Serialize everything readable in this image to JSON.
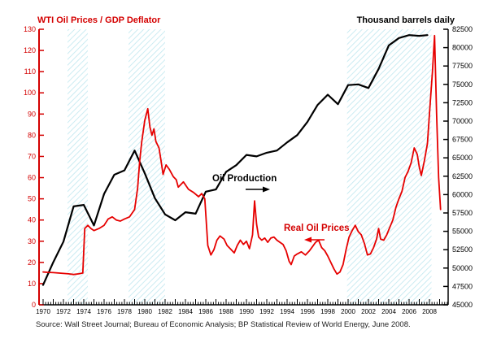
{
  "annotations": {
    "production_label": "Oil Production",
    "prices_label": "Real Oil Prices"
  },
  "source_note": "Source: Wall Street Journal; Bureau of Economic Analysis; BP Statistical Review of World Energy, June 2008.",
  "colors": {
    "price_series": "#e60000",
    "production_series": "#000000",
    "left_axis": "#d40000",
    "right_axis": "#000000",
    "band_hatch": "#c2e8f0"
  },
  "chart_data": {
    "type": "line",
    "title": "",
    "x_axis": {
      "range": [
        1969.6,
        2009.9
      ],
      "label_years": [
        1970,
        1972,
        1974,
        1976,
        1978,
        1980,
        1982,
        1984,
        1986,
        1988,
        1990,
        1992,
        1994,
        1996,
        1998,
        2000,
        2002,
        2004,
        2006,
        2008
      ],
      "major_tick_every": 1,
      "minor_tick_every": 0.25,
      "grid": false
    },
    "left_axis": {
      "title": "WTI Oil Prices / GDP Deflator",
      "range": [
        0,
        130
      ],
      "ticks": [
        0,
        10,
        20,
        30,
        40,
        50,
        60,
        70,
        80,
        90,
        100,
        110,
        120,
        130
      ],
      "color": "#d40000"
    },
    "right_axis": {
      "title": "Thousand barrels daily",
      "range": [
        45000,
        82500
      ],
      "ticks": [
        45000,
        47500,
        50000,
        52500,
        55000,
        57500,
        60000,
        62500,
        65000,
        67500,
        70000,
        72500,
        75000,
        77500,
        80000,
        82500
      ],
      "color": "#000000"
    },
    "shaded_bands": [
      {
        "from": 1972.4,
        "to": 1974.4
      },
      {
        "from": 1978.4,
        "to": 1982.0
      },
      {
        "from": 1999.9,
        "to": 2008.2
      }
    ],
    "series": [
      {
        "name": "Oil Production",
        "axis": "right",
        "color": "#000000",
        "points": [
          [
            1970,
            47700
          ],
          [
            1971,
            50800
          ],
          [
            1972,
            53600
          ],
          [
            1973,
            58400
          ],
          [
            1974,
            58600
          ],
          [
            1975,
            55800
          ],
          [
            1976,
            60100
          ],
          [
            1977,
            62700
          ],
          [
            1978,
            63300
          ],
          [
            1979,
            66000
          ],
          [
            1980,
            62900
          ],
          [
            1981,
            59500
          ],
          [
            1982,
            57300
          ],
          [
            1983,
            56500
          ],
          [
            1984,
            57600
          ],
          [
            1985,
            57400
          ],
          [
            1986,
            60400
          ],
          [
            1987,
            60700
          ],
          [
            1988,
            63100
          ],
          [
            1989,
            64000
          ],
          [
            1990,
            65400
          ],
          [
            1991,
            65200
          ],
          [
            1992,
            65700
          ],
          [
            1993,
            66000
          ],
          [
            1994,
            67100
          ],
          [
            1995,
            68100
          ],
          [
            1996,
            69900
          ],
          [
            1997,
            72200
          ],
          [
            1998,
            73600
          ],
          [
            1999,
            72300
          ],
          [
            2000,
            74900
          ],
          [
            2001,
            75000
          ],
          [
            2002,
            74500
          ],
          [
            2003,
            77100
          ],
          [
            2004,
            80300
          ],
          [
            2005,
            81300
          ],
          [
            2006,
            81700
          ],
          [
            2007,
            81600
          ],
          [
            2007.8,
            81700
          ]
        ]
      },
      {
        "name": "Real Oil Prices",
        "axis": "left",
        "color": "#e60000",
        "points": [
          [
            1970,
            15.5
          ],
          [
            1970.5,
            15.3
          ],
          [
            1971,
            15.2
          ],
          [
            1971.5,
            15
          ],
          [
            1972,
            14.8
          ],
          [
            1972.5,
            14.6
          ],
          [
            1973,
            14.3
          ],
          [
            1973.5,
            14.6
          ],
          [
            1973.9,
            15
          ],
          [
            1974.1,
            36
          ],
          [
            1974.4,
            37.5
          ],
          [
            1974.7,
            36
          ],
          [
            1975,
            35
          ],
          [
            1975.5,
            36
          ],
          [
            1976,
            37.5
          ],
          [
            1976.4,
            40.5
          ],
          [
            1976.8,
            41.5
          ],
          [
            1977.2,
            40
          ],
          [
            1977.6,
            39.5
          ],
          [
            1978,
            40.5
          ],
          [
            1978.5,
            41.5
          ],
          [
            1979,
            45
          ],
          [
            1979.3,
            55
          ],
          [
            1979.5,
            68
          ],
          [
            1979.7,
            77
          ],
          [
            1980,
            87
          ],
          [
            1980.3,
            92.5
          ],
          [
            1980.5,
            84
          ],
          [
            1980.7,
            80
          ],
          [
            1980.9,
            83
          ],
          [
            1981.1,
            77
          ],
          [
            1981.4,
            74
          ],
          [
            1981.6,
            68
          ],
          [
            1981.8,
            61.5
          ],
          [
            1982.1,
            66
          ],
          [
            1982.4,
            64
          ],
          [
            1982.8,
            60.5
          ],
          [
            1983.1,
            59
          ],
          [
            1983.3,
            55.5
          ],
          [
            1983.8,
            58
          ],
          [
            1984.3,
            54.5
          ],
          [
            1984.8,
            53
          ],
          [
            1985.3,
            51
          ],
          [
            1985.6,
            52.5
          ],
          [
            1985.9,
            50
          ],
          [
            1986.2,
            28
          ],
          [
            1986.5,
            23.5
          ],
          [
            1986.8,
            26
          ],
          [
            1987.1,
            30.5
          ],
          [
            1987.4,
            32.5
          ],
          [
            1987.8,
            31
          ],
          [
            1988.1,
            28
          ],
          [
            1988.4,
            26.5
          ],
          [
            1988.8,
            24.5
          ],
          [
            1989.1,
            28
          ],
          [
            1989.4,
            30.5
          ],
          [
            1989.7,
            28.5
          ],
          [
            1990,
            30
          ],
          [
            1990.3,
            26.5
          ],
          [
            1990.6,
            33
          ],
          [
            1990.8,
            49
          ],
          [
            1991,
            38
          ],
          [
            1991.2,
            32
          ],
          [
            1991.5,
            30.5
          ],
          [
            1991.8,
            31.5
          ],
          [
            1992.1,
            29.5
          ],
          [
            1992.4,
            31.5
          ],
          [
            1992.7,
            32
          ],
          [
            1993,
            30.5
          ],
          [
            1993.3,
            29.5
          ],
          [
            1993.6,
            28.5
          ],
          [
            1993.9,
            25.5
          ],
          [
            1994.2,
            20.5
          ],
          [
            1994.4,
            19
          ],
          [
            1994.7,
            23
          ],
          [
            1995,
            24
          ],
          [
            1995.4,
            25
          ],
          [
            1995.8,
            23.5
          ],
          [
            1996.2,
            25.5
          ],
          [
            1996.5,
            27.5
          ],
          [
            1996.8,
            29.5
          ],
          [
            1997.1,
            30.5
          ],
          [
            1997.4,
            27
          ],
          [
            1997.7,
            25.5
          ],
          [
            1998,
            23
          ],
          [
            1998.3,
            20
          ],
          [
            1998.6,
            17
          ],
          [
            1998.9,
            14.5
          ],
          [
            1999.2,
            15.5
          ],
          [
            1999.5,
            19
          ],
          [
            1999.8,
            26
          ],
          [
            2000.1,
            32
          ],
          [
            2000.4,
            35
          ],
          [
            2000.7,
            37.5
          ],
          [
            2001,
            34.5
          ],
          [
            2001.3,
            33
          ],
          [
            2001.6,
            29
          ],
          [
            2001.9,
            23.5
          ],
          [
            2002.2,
            24
          ],
          [
            2002.5,
            27
          ],
          [
            2002.8,
            31
          ],
          [
            2003,
            36
          ],
          [
            2003.2,
            31
          ],
          [
            2003.5,
            30.5
          ],
          [
            2003.8,
            33
          ],
          [
            2004.1,
            36.5
          ],
          [
            2004.4,
            40
          ],
          [
            2004.7,
            46
          ],
          [
            2005,
            50
          ],
          [
            2005.3,
            53.5
          ],
          [
            2005.6,
            60
          ],
          [
            2005.9,
            63
          ],
          [
            2006.2,
            67
          ],
          [
            2006.5,
            74
          ],
          [
            2006.8,
            71
          ],
          [
            2007,
            65
          ],
          [
            2007.2,
            61
          ],
          [
            2007.5,
            68
          ],
          [
            2007.8,
            76
          ],
          [
            2008,
            90
          ],
          [
            2008.3,
            110
          ],
          [
            2008.5,
            127
          ],
          [
            2008.7,
            90
          ],
          [
            2008.9,
            60
          ],
          [
            2009.1,
            45
          ]
        ]
      }
    ],
    "legend_position": "none"
  }
}
